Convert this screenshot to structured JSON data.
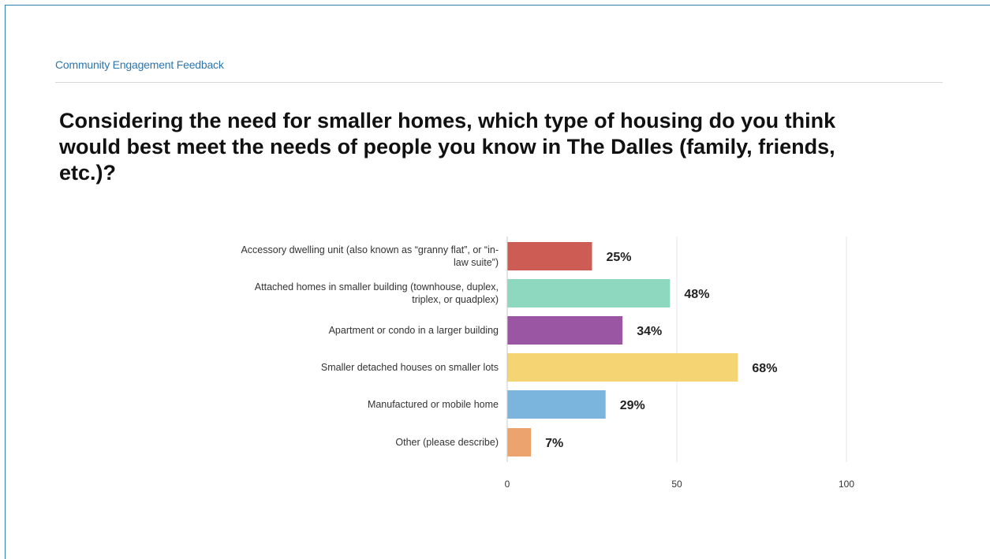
{
  "header": {
    "section": "Community Engagement Feedback"
  },
  "question": "Considering the need for smaller homes, which type of housing do you think would best meet the needs of people you know in The Dalles (family, friends, etc.)?",
  "chart_data": {
    "type": "bar",
    "orientation": "horizontal",
    "categories": [
      [
        "Accessory dwelling unit (also known as “granny flat”, or “in-",
        "law suite”)"
      ],
      [
        "Attached homes in smaller building (townhouse, duplex,",
        "triplex, or quadplex)"
      ],
      [
        "Apartment or condo in a larger building"
      ],
      [
        "Smaller detached houses on smaller lots"
      ],
      [
        "Manufactured or mobile home"
      ],
      [
        "Other (please describe)"
      ]
    ],
    "values": [
      25,
      48,
      34,
      68,
      29,
      7
    ],
    "value_labels": [
      "25%",
      "48%",
      "34%",
      "68%",
      "29%",
      "7%"
    ],
    "colors": [
      "#cd5c55",
      "#8ed8c0",
      "#9a55a3",
      "#f5d473",
      "#7bb4dc",
      "#eca36d"
    ],
    "xlim": [
      0,
      100
    ],
    "xticks": [
      "0",
      "50",
      "100"
    ],
    "grid": true
  }
}
